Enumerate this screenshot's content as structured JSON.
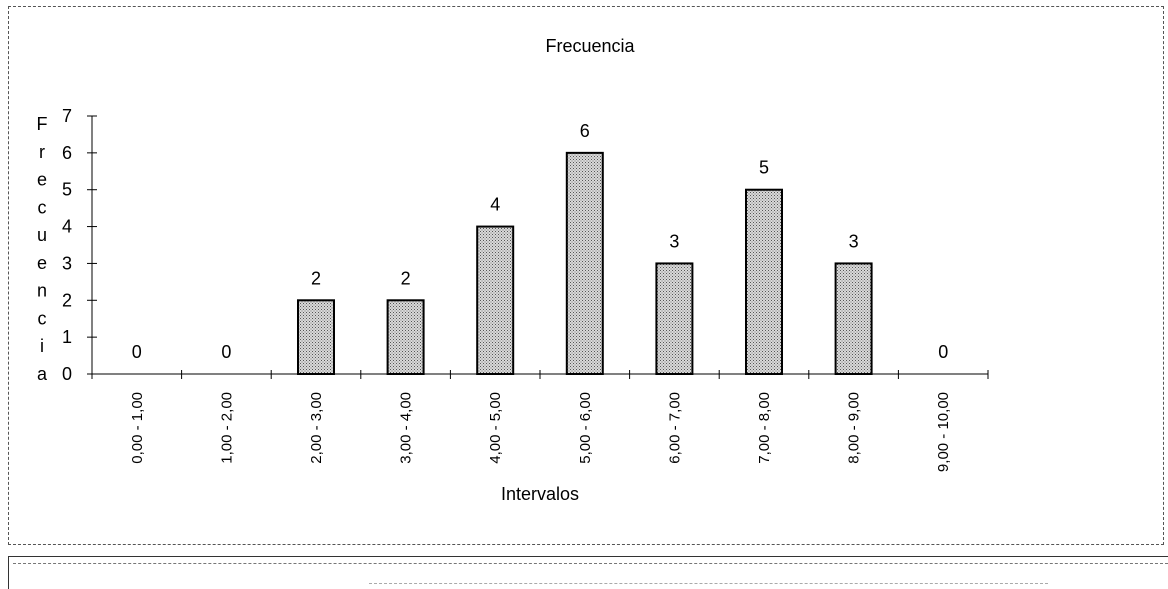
{
  "chart_data": {
    "type": "bar",
    "title": "Frecuencia",
    "xlabel": "Intervalos",
    "ylabel": "Frecuencia",
    "categories": [
      "0,00 - 1,00",
      "1,00 - 2,00",
      "2,00 - 3,00",
      "3,00 - 4,00",
      "4,00 - 5,00",
      "5,00 - 6,00",
      "6,00 - 7,00",
      "7,00 - 8,00",
      "8,00 - 9,00",
      "9,00 - 10,00"
    ],
    "values": [
      0,
      0,
      2,
      2,
      4,
      6,
      3,
      5,
      3,
      0
    ],
    "data_labels": [
      "0",
      "0",
      "2",
      "2",
      "4",
      "6",
      "3",
      "5",
      "3",
      "0"
    ],
    "yticks": [
      "0",
      "1",
      "2",
      "3",
      "4",
      "5",
      "6",
      "7"
    ],
    "ylim": [
      0,
      7
    ],
    "grid": false,
    "legend": "none",
    "bar_color": "#c8c8c8",
    "bar_edge_color": "#000000"
  }
}
